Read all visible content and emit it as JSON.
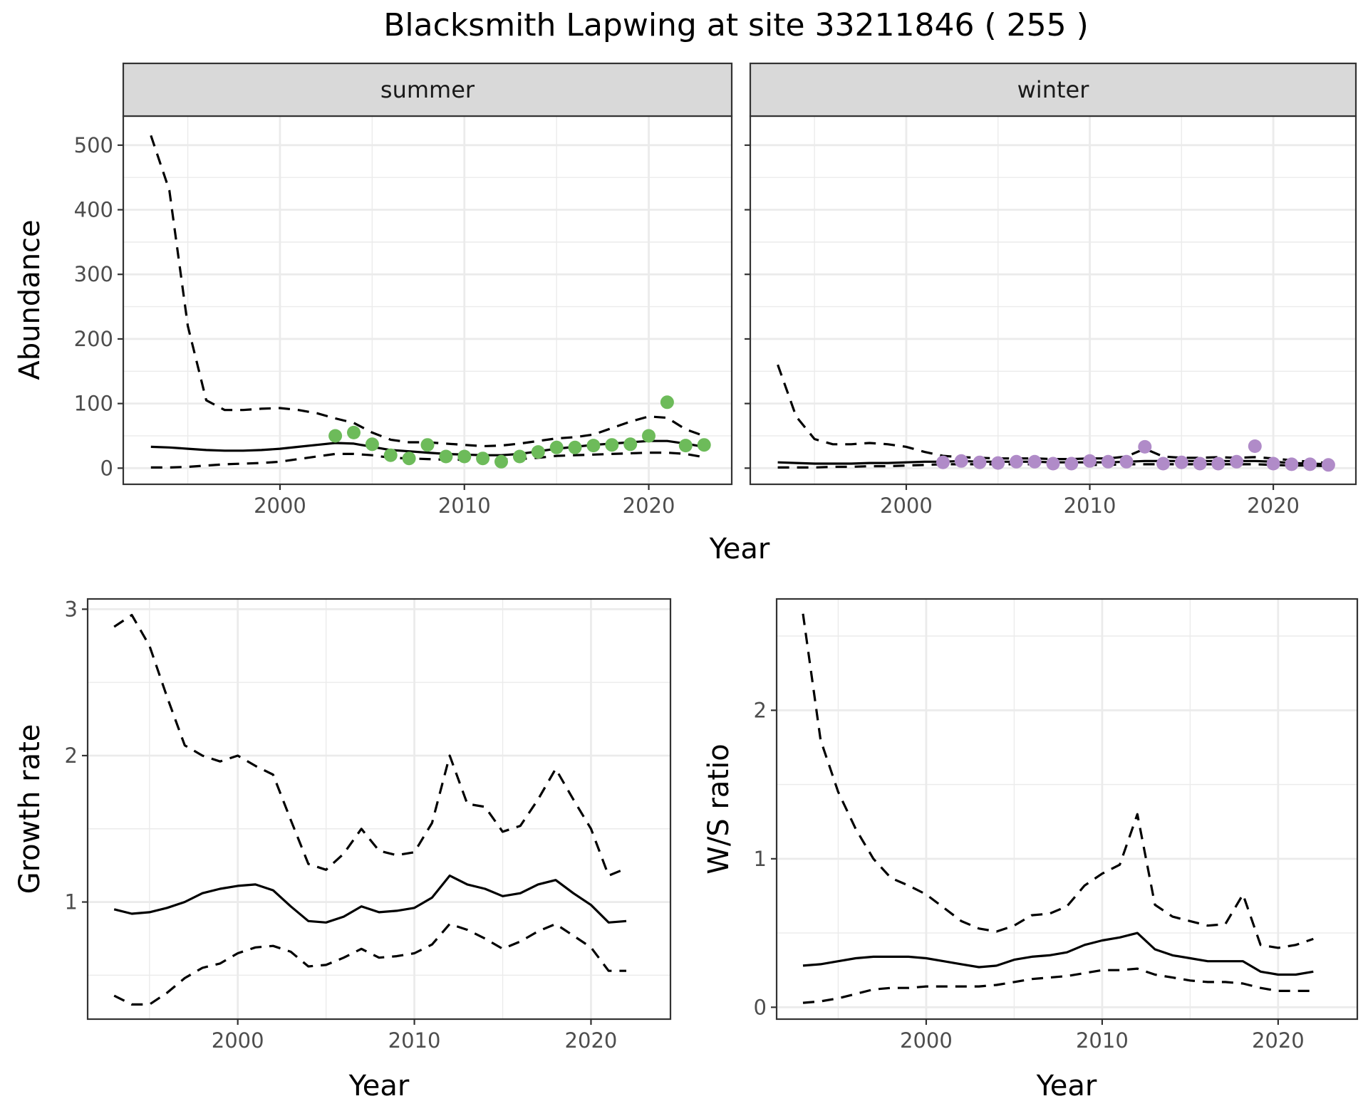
{
  "title": "Blacksmith Lapwing at site 33211846 ( 255 )",
  "colors": {
    "summer_points": "#6dbb5a",
    "winter_points": "#b08bc8",
    "line": "#000000",
    "grid": "#ebebeb",
    "strip": "#d9d9d9"
  },
  "chart_data": [
    {
      "type": "line",
      "panel": "summer",
      "strip_label": "summer",
      "xlabel": "Year",
      "ylabel": "Abundance",
      "xlim": [
        1991.5,
        2024.5
      ],
      "ylim": [
        -25,
        545
      ],
      "x_ticks": [
        2000,
        2010,
        2020
      ],
      "y_ticks": [
        0,
        100,
        200,
        300,
        400,
        500
      ],
      "grid": true,
      "series": [
        {
          "role": "estimate",
          "x": [
            1993,
            1994,
            1995,
            1996,
            1997,
            1998,
            1999,
            2000,
            2001,
            2002,
            2003,
            2004,
            2005,
            2006,
            2007,
            2008,
            2009,
            2010,
            2011,
            2012,
            2013,
            2014,
            2015,
            2016,
            2017,
            2018,
            2019,
            2020,
            2021,
            2022,
            2023
          ],
          "y": [
            33,
            32,
            30,
            28,
            27,
            27,
            28,
            30,
            33,
            36,
            39,
            38,
            33,
            28,
            26,
            24,
            22,
            21,
            20,
            20,
            22,
            26,
            30,
            33,
            36,
            38,
            40,
            42,
            42,
            38,
            33
          ]
        },
        {
          "role": "lower",
          "x": [
            1993,
            1994,
            1995,
            1996,
            1997,
            1998,
            1999,
            2000,
            2001,
            2002,
            2003,
            2004,
            2005,
            2006,
            2007,
            2008,
            2009,
            2010,
            2011,
            2012,
            2013,
            2014,
            2015,
            2016,
            2017,
            2018,
            2019,
            2020,
            2021,
            2022,
            2023
          ],
          "y": [
            1,
            1,
            2,
            4,
            6,
            7,
            8,
            10,
            14,
            18,
            22,
            22,
            20,
            16,
            15,
            14,
            13,
            13,
            12,
            13,
            14,
            16,
            19,
            20,
            21,
            22,
            23,
            24,
            24,
            22,
            17
          ]
        },
        {
          "role": "upper",
          "x": [
            1993,
            1994,
            1995,
            1996,
            1997,
            1998,
            1999,
            2000,
            2001,
            2002,
            2003,
            2004,
            2005,
            2006,
            2007,
            2008,
            2009,
            2010,
            2011,
            2012,
            2013,
            2014,
            2015,
            2016,
            2017,
            2018,
            2019,
            2020,
            2021,
            2022,
            2023
          ],
          "y": [
            515,
            430,
            220,
            105,
            90,
            90,
            92,
            93,
            90,
            85,
            77,
            70,
            55,
            44,
            40,
            40,
            38,
            36,
            34,
            35,
            38,
            42,
            46,
            48,
            52,
            62,
            72,
            80,
            78,
            60,
            50
          ]
        },
        {
          "role": "observed",
          "x": [
            2003,
            2004,
            2005,
            2006,
            2007,
            2008,
            2009,
            2010,
            2011,
            2012,
            2013,
            2014,
            2015,
            2016,
            2017,
            2018,
            2019,
            2020,
            2021,
            2022,
            2023
          ],
          "y": [
            50,
            55,
            37,
            20,
            15,
            36,
            18,
            18,
            15,
            10,
            18,
            25,
            32,
            32,
            35,
            36,
            37,
            50,
            102,
            35,
            36
          ]
        }
      ]
    },
    {
      "type": "line",
      "panel": "winter",
      "strip_label": "winter",
      "xlabel": "Year",
      "ylabel": "Abundance",
      "xlim": [
        1991.5,
        2024.5
      ],
      "ylim": [
        -25,
        545
      ],
      "x_ticks": [
        2000,
        2010,
        2020
      ],
      "y_ticks": [
        0,
        100,
        200,
        300,
        400,
        500
      ],
      "grid": true,
      "series": [
        {
          "role": "estimate",
          "x": [
            1993,
            1994,
            1995,
            1996,
            1997,
            1998,
            1999,
            2000,
            2001,
            2002,
            2003,
            2004,
            2005,
            2006,
            2007,
            2008,
            2009,
            2010,
            2011,
            2012,
            2013,
            2014,
            2015,
            2016,
            2017,
            2018,
            2019,
            2020,
            2021,
            2022,
            2023
          ],
          "y": [
            9,
            8,
            7,
            7,
            7,
            8,
            8,
            9,
            10,
            10,
            11,
            10,
            10,
            10,
            10,
            9,
            9,
            9,
            9,
            10,
            11,
            11,
            11,
            11,
            11,
            11,
            11,
            10,
            8,
            7,
            6
          ]
        },
        {
          "role": "lower",
          "x": [
            1993,
            1994,
            1995,
            1996,
            1997,
            1998,
            1999,
            2000,
            2001,
            2002,
            2003,
            2004,
            2005,
            2006,
            2007,
            2008,
            2009,
            2010,
            2011,
            2012,
            2013,
            2014,
            2015,
            2016,
            2017,
            2018,
            2019,
            2020,
            2021,
            2022,
            2023
          ],
          "y": [
            1,
            1,
            1,
            2,
            2,
            3,
            3,
            4,
            5,
            6,
            6,
            6,
            6,
            6,
            6,
            5,
            5,
            5,
            5,
            6,
            6,
            6,
            6,
            6,
            6,
            6,
            6,
            5,
            4,
            4,
            3
          ]
        },
        {
          "role": "upper",
          "x": [
            1993,
            1994,
            1995,
            1996,
            1997,
            1998,
            1999,
            2000,
            2001,
            2002,
            2003,
            2004,
            2005,
            2006,
            2007,
            2008,
            2009,
            2010,
            2011,
            2012,
            2013,
            2014,
            2015,
            2016,
            2017,
            2018,
            2019,
            2020,
            2021,
            2022,
            2023
          ],
          "y": [
            160,
            80,
            45,
            37,
            37,
            39,
            37,
            33,
            25,
            19,
            17,
            16,
            15,
            15,
            15,
            14,
            14,
            15,
            15,
            18,
            30,
            18,
            16,
            16,
            17,
            16,
            17,
            15,
            12,
            10,
            8
          ]
        },
        {
          "role": "observed",
          "x": [
            2002,
            2003,
            2004,
            2005,
            2006,
            2007,
            2008,
            2009,
            2010,
            2011,
            2012,
            2013,
            2014,
            2015,
            2016,
            2017,
            2018,
            2019,
            2020,
            2021,
            2022,
            2023
          ],
          "y": [
            9,
            11,
            9,
            8,
            10,
            10,
            7,
            7,
            11,
            10,
            10,
            33,
            7,
            9,
            7,
            7,
            10,
            34,
            7,
            6,
            6,
            5
          ]
        }
      ]
    },
    {
      "type": "line",
      "panel": "growth",
      "xlabel": "Year",
      "ylabel": "Growth rate",
      "xlim": [
        1991.5,
        2024.5
      ],
      "ylim": [
        0.2,
        3.07
      ],
      "x_ticks": [
        2000,
        2010,
        2020
      ],
      "y_ticks": [
        1,
        2,
        3
      ],
      "grid": true,
      "series": [
        {
          "role": "estimate",
          "x": [
            1993,
            1994,
            1995,
            1996,
            1997,
            1998,
            1999,
            2000,
            2001,
            2002,
            2003,
            2004,
            2005,
            2006,
            2007,
            2008,
            2009,
            2010,
            2011,
            2012,
            2013,
            2014,
            2015,
            2016,
            2017,
            2018,
            2019,
            2020,
            2021,
            2022
          ],
          "y": [
            0.95,
            0.92,
            0.93,
            0.96,
            1.0,
            1.06,
            1.09,
            1.11,
            1.12,
            1.08,
            0.97,
            0.87,
            0.86,
            0.9,
            0.97,
            0.93,
            0.94,
            0.96,
            1.03,
            1.18,
            1.12,
            1.09,
            1.04,
            1.06,
            1.12,
            1.15,
            1.06,
            0.98,
            0.86,
            0.87
          ]
        },
        {
          "role": "lower",
          "x": [
            1993,
            1994,
            1995,
            1996,
            1997,
            1998,
            1999,
            2000,
            2001,
            2002,
            2003,
            2004,
            2005,
            2006,
            2007,
            2008,
            2009,
            2010,
            2011,
            2012,
            2013,
            2014,
            2015,
            2016,
            2017,
            2018,
            2019,
            2020,
            2021,
            2022
          ],
          "y": [
            0.36,
            0.3,
            0.3,
            0.38,
            0.48,
            0.55,
            0.58,
            0.65,
            0.69,
            0.7,
            0.66,
            0.56,
            0.57,
            0.62,
            0.68,
            0.62,
            0.63,
            0.65,
            0.71,
            0.85,
            0.81,
            0.75,
            0.68,
            0.73,
            0.8,
            0.85,
            0.77,
            0.69,
            0.53,
            0.53
          ]
        },
        {
          "role": "upper",
          "x": [
            1993,
            1994,
            1995,
            1996,
            1997,
            1998,
            1999,
            2000,
            2001,
            2002,
            2003,
            2004,
            2005,
            2006,
            2007,
            2008,
            2009,
            2010,
            2011,
            2012,
            2013,
            2014,
            2015,
            2016,
            2017,
            2018,
            2019,
            2020,
            2021,
            2022
          ],
          "y": [
            2.88,
            2.96,
            2.75,
            2.4,
            2.07,
            2.0,
            1.96,
            2.0,
            1.93,
            1.87,
            1.56,
            1.26,
            1.22,
            1.33,
            1.5,
            1.35,
            1.32,
            1.34,
            1.54,
            2.0,
            1.67,
            1.65,
            1.48,
            1.52,
            1.7,
            1.91,
            1.7,
            1.5,
            1.18,
            1.23
          ]
        }
      ]
    },
    {
      "type": "line",
      "panel": "ratio",
      "xlabel": "Year",
      "ylabel": "W/S ratio",
      "xlim": [
        1991.5,
        2024.5
      ],
      "ylim": [
        -0.08,
        2.75
      ],
      "x_ticks": [
        2000,
        2010,
        2020
      ],
      "y_ticks": [
        0,
        1,
        2
      ],
      "grid": true,
      "series": [
        {
          "role": "estimate",
          "x": [
            1993,
            1994,
            1995,
            1996,
            1997,
            1998,
            1999,
            2000,
            2001,
            2002,
            2003,
            2004,
            2005,
            2006,
            2007,
            2008,
            2009,
            2010,
            2011,
            2012,
            2013,
            2014,
            2015,
            2016,
            2017,
            2018,
            2019,
            2020,
            2021,
            2022
          ],
          "y": [
            0.28,
            0.29,
            0.31,
            0.33,
            0.34,
            0.34,
            0.34,
            0.33,
            0.31,
            0.29,
            0.27,
            0.28,
            0.32,
            0.34,
            0.35,
            0.37,
            0.42,
            0.45,
            0.47,
            0.5,
            0.39,
            0.35,
            0.33,
            0.31,
            0.31,
            0.31,
            0.24,
            0.22,
            0.22,
            0.24
          ]
        },
        {
          "role": "lower",
          "x": [
            1993,
            1994,
            1995,
            1996,
            1997,
            1998,
            1999,
            2000,
            2001,
            2002,
            2003,
            2004,
            2005,
            2006,
            2007,
            2008,
            2009,
            2010,
            2011,
            2012,
            2013,
            2014,
            2015,
            2016,
            2017,
            2018,
            2019,
            2020,
            2021,
            2022
          ],
          "y": [
            0.03,
            0.04,
            0.06,
            0.09,
            0.12,
            0.13,
            0.13,
            0.14,
            0.14,
            0.14,
            0.14,
            0.15,
            0.17,
            0.19,
            0.2,
            0.21,
            0.23,
            0.25,
            0.25,
            0.26,
            0.22,
            0.2,
            0.18,
            0.17,
            0.17,
            0.16,
            0.13,
            0.11,
            0.11,
            0.11
          ]
        },
        {
          "role": "upper",
          "x": [
            1993,
            1994,
            1995,
            1996,
            1997,
            1998,
            1999,
            2000,
            2001,
            2002,
            2003,
            2004,
            2005,
            2006,
            2007,
            2008,
            2009,
            2010,
            2011,
            2012,
            2013,
            2014,
            2015,
            2016,
            2017,
            2018,
            2019,
            2020,
            2021,
            2022
          ],
          "y": [
            2.65,
            1.8,
            1.45,
            1.2,
            1.0,
            0.87,
            0.82,
            0.76,
            0.67,
            0.58,
            0.53,
            0.51,
            0.55,
            0.62,
            0.63,
            0.68,
            0.82,
            0.9,
            0.96,
            1.3,
            0.69,
            0.61,
            0.58,
            0.55,
            0.56,
            0.76,
            0.42,
            0.4,
            0.42,
            0.46
          ]
        }
      ]
    }
  ]
}
